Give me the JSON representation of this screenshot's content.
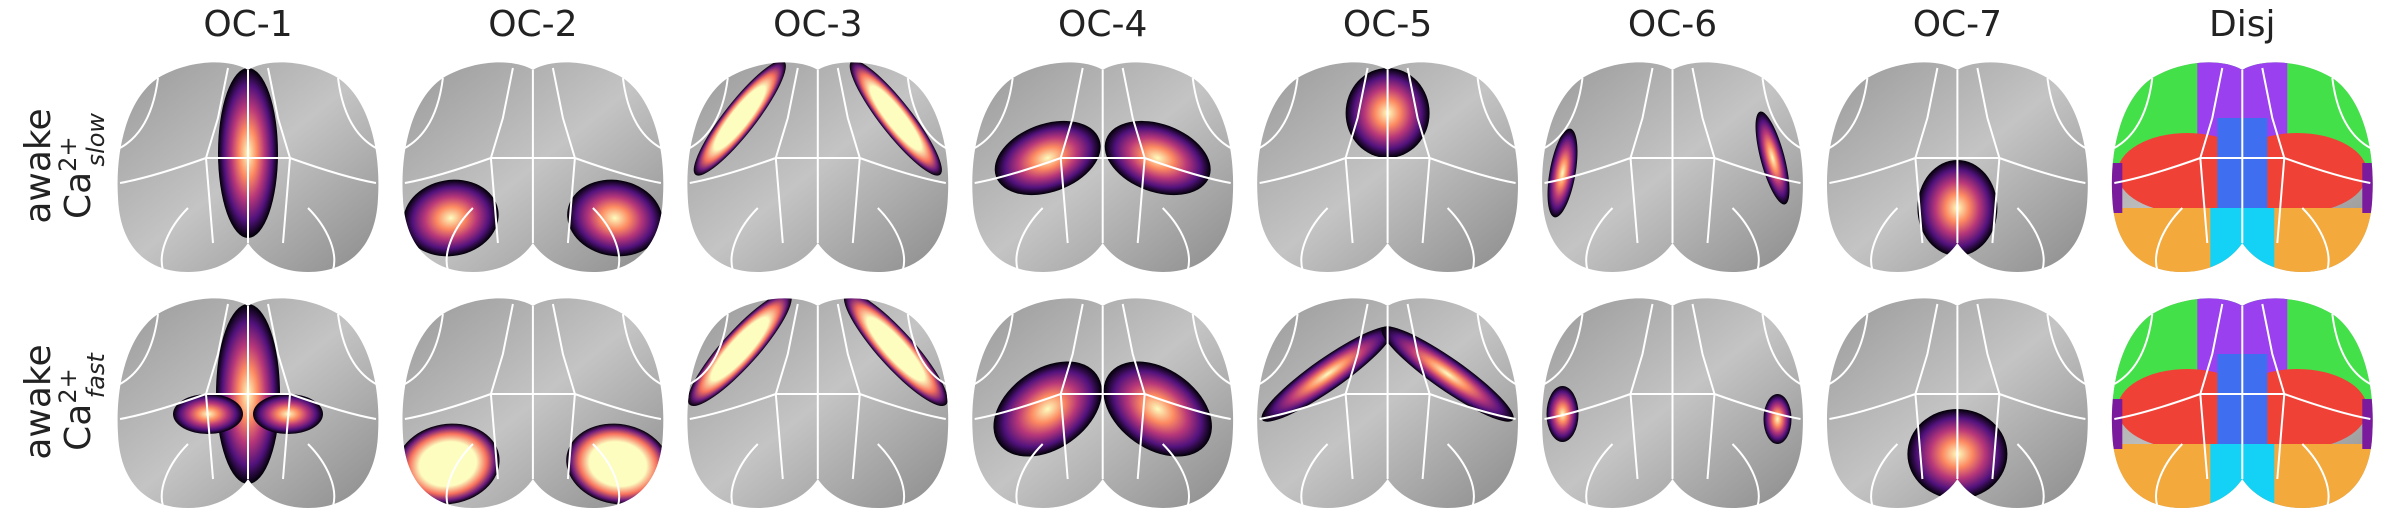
{
  "columns": [
    "OC-1",
    "OC-2",
    "OC-3",
    "OC-4",
    "OC-5",
    "OC-6",
    "OC-7",
    "Disj"
  ],
  "rows": [
    {
      "state": "awake",
      "ion": "Ca",
      "charge": "2+",
      "kinetics": "slow"
    },
    {
      "state": "awake",
      "ion": "Ca",
      "charge": "2+",
      "kinetics": "fast"
    }
  ]
}
